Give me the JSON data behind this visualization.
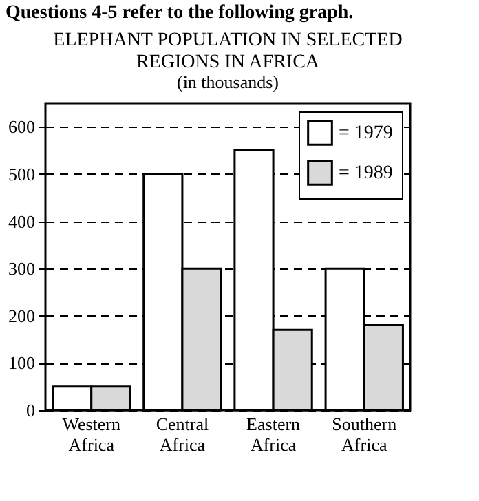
{
  "chart_data": {
    "type": "bar",
    "title": "ELEPHANT POPULATION IN SELECTED REGIONS IN AFRICA",
    "subtitle": "(in thousands)",
    "annotations": [
      "Questions 4-5 refer to the following graph."
    ],
    "categories": [
      "Western Africa",
      "Central Africa",
      "Eastern Africa",
      "Southern Africa"
    ],
    "series": [
      {
        "name": "= 1979",
        "color": "#ffffff",
        "values": [
          50,
          500,
          550,
          300
        ]
      },
      {
        "name": "= 1989",
        "color": "#d9d9d9",
        "values": [
          50,
          300,
          170,
          180
        ]
      }
    ],
    "ylim": [
      0,
      650
    ],
    "yticks": [
      0,
      100,
      200,
      300,
      400,
      500,
      600
    ],
    "grid": "y",
    "legend": "top right"
  }
}
